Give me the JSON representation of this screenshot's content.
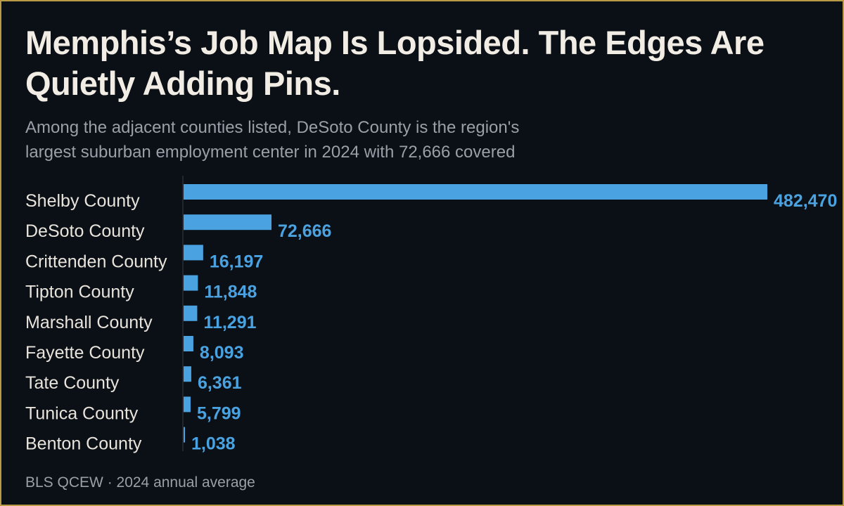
{
  "page": {
    "title": "Memphis’s Job Map Is Lopsided. The Edges Are Quietly Adding Pins.",
    "subtitle": "Among the adjacent counties listed, DeSoto County is the region's largest suburban employment center in 2024 with 72,666 covered",
    "source": "BLS QCEW · 2024 annual average"
  },
  "colors": {
    "background": "#0b0f16",
    "border": "#b99a45",
    "bar": "#4aa3e0",
    "title": "#f1ece4",
    "muted": "#9a9fa8"
  },
  "chart_data": {
    "type": "bar",
    "orientation": "horizontal",
    "categories": [
      "Shelby County",
      "DeSoto County",
      "Crittenden County",
      "Tipton County",
      "Marshall County",
      "Fayette County",
      "Tate County",
      "Tunica County",
      "Benton County"
    ],
    "values": [
      482470,
      72666,
      16197,
      11848,
      11291,
      8093,
      6361,
      5799,
      1038
    ],
    "value_labels": [
      "482,470",
      "72,666",
      "16,197",
      "11,848",
      "11,291",
      "8,093",
      "6,361",
      "5,799",
      "1,038"
    ],
    "xlim": [
      0,
      482470
    ],
    "grid": false,
    "legend": "none"
  }
}
